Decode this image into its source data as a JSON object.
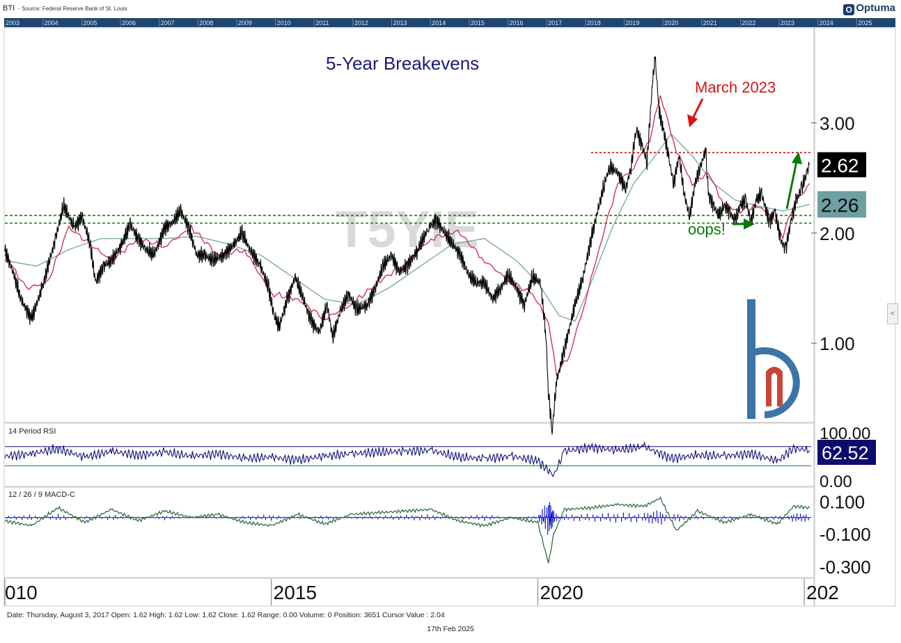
{
  "header": {
    "symbol": "BTI",
    "source": "- Source: Federal Reserve Bank of St. Louis",
    "logo_text": "Optuma",
    "logo_mark": "O"
  },
  "timeline_years": [
    "2003",
    "2004",
    "2005",
    "2006",
    "2007",
    "2008",
    "2009",
    "2010",
    "2011",
    "2012",
    "2013",
    "2014",
    "2015",
    "2016",
    "2017",
    "2018",
    "2019",
    "2020",
    "2021",
    "2022",
    "2023",
    "2024",
    "2025"
  ],
  "watermark": "T5YIE",
  "annotations": {
    "title": "5-Year Breakevens",
    "march": "March 2023",
    "oops": "oops!"
  },
  "status_bar": "Date: Thursday, August 3, 2017 Open: 1.62 High: 1.62 Low: 1.62 Close: 1.62 Range: 0.00 Volume: 0 Position: 3651 Cursor Value : 2.04",
  "footer_date": "17th Feb 2025",
  "scroll_glyph": "<",
  "colors": {
    "price": "#000000",
    "ma_fast": "#d2344e",
    "ma_slow": "#7ca8aa",
    "resistance": "#cc0000",
    "support": "#0a7a0a",
    "rsi": "#10107a",
    "macd_line": "#2f6f3f",
    "macd_hist": "#1010d0",
    "timeline_bg": "#1e4670",
    "last_price_bg": "#000000",
    "ma_label_bg": "#6e9fa2",
    "rsi_label_bg": "#0c0c6e"
  },
  "chart_data": [
    {
      "type": "line",
      "panel": "price",
      "title": "5-Year Breakevens",
      "ylim": [
        0.3,
        3.85
      ],
      "x_range": [
        2010.0,
        2025.13
      ],
      "y_ticks": [
        "3.00",
        "2.00",
        "1.00"
      ],
      "y_tick_values": [
        3.0,
        2.0,
        1.0
      ],
      "x_ticks": [
        "010",
        "2015",
        "2020",
        "202"
      ],
      "x_tick_values": [
        2010.0,
        2015.0,
        2020.0,
        2025.0
      ],
      "last_value_label": "2.62",
      "ma_value_label": "2.26",
      "support_levels": [
        2.16,
        2.09
      ],
      "resistance_level": 2.73,
      "series": [
        {
          "key": "price",
          "x": [
            2010.0,
            2010.15,
            2010.3,
            2010.5,
            2010.7,
            2010.95,
            2011.1,
            2011.3,
            2011.45,
            2011.6,
            2011.7,
            2011.85,
            2012.0,
            2012.2,
            2012.35,
            2012.5,
            2012.65,
            2012.8,
            2013.0,
            2013.15,
            2013.3,
            2013.45,
            2013.6,
            2013.75,
            2013.9,
            2014.1,
            2014.3,
            2014.45,
            2014.6,
            2014.8,
            2014.95,
            2015.05,
            2015.15,
            2015.3,
            2015.45,
            2015.6,
            2015.75,
            2015.9,
            2016.05,
            2016.15,
            2016.3,
            2016.45,
            2016.6,
            2016.8,
            2016.95,
            2017.1,
            2017.25,
            2017.4,
            2017.55,
            2017.75,
            2017.95,
            2018.1,
            2018.25,
            2018.4,
            2018.55,
            2018.7,
            2018.85,
            2019.0,
            2019.15,
            2019.3,
            2019.45,
            2019.6,
            2019.75,
            2019.9,
            2020.05,
            2020.15,
            2020.2,
            2020.27,
            2020.35,
            2020.5,
            2020.7,
            2020.85,
            2021.0,
            2021.15,
            2021.25,
            2021.35,
            2021.5,
            2021.65,
            2021.75,
            2021.85,
            2021.95,
            2022.05,
            2022.15,
            2022.2,
            2022.28,
            2022.35,
            2022.45,
            2022.55,
            2022.65,
            2022.75,
            2022.85,
            2022.95,
            2023.05,
            2023.15,
            2023.2,
            2023.3,
            2023.4,
            2023.5,
            2023.6,
            2023.7,
            2023.8,
            2023.9,
            2024.0,
            2024.1,
            2024.2,
            2024.35,
            2024.45,
            2024.55,
            2024.65,
            2024.75,
            2024.85,
            2024.95,
            2025.05,
            2025.1
          ],
          "values": [
            1.85,
            1.65,
            1.4,
            1.22,
            1.5,
            1.95,
            2.25,
            2.05,
            2.15,
            1.9,
            1.55,
            1.7,
            1.75,
            1.9,
            2.08,
            1.95,
            1.85,
            1.8,
            2.05,
            2.1,
            2.2,
            2.05,
            1.8,
            1.8,
            1.75,
            1.8,
            1.9,
            2.0,
            1.85,
            1.7,
            1.5,
            1.25,
            1.15,
            1.4,
            1.6,
            1.4,
            1.2,
            1.1,
            1.35,
            1.05,
            1.3,
            1.45,
            1.3,
            1.35,
            1.5,
            1.7,
            1.8,
            1.65,
            1.7,
            1.85,
            2.05,
            2.12,
            2.0,
            1.9,
            1.8,
            1.62,
            1.55,
            1.55,
            1.4,
            1.5,
            1.62,
            1.5,
            1.35,
            1.6,
            1.55,
            1.1,
            0.55,
            0.2,
            0.65,
            0.95,
            1.35,
            1.6,
            1.95,
            2.25,
            2.45,
            2.6,
            2.55,
            2.4,
            2.6,
            2.95,
            2.8,
            2.65,
            3.35,
            3.6,
            3.1,
            2.95,
            2.7,
            2.45,
            2.7,
            2.35,
            2.15,
            2.45,
            2.6,
            2.75,
            2.35,
            2.25,
            2.15,
            2.25,
            2.2,
            2.1,
            2.25,
            2.3,
            2.1,
            2.3,
            2.35,
            2.1,
            2.2,
            1.95,
            1.85,
            2.1,
            2.3,
            2.4,
            2.55,
            2.62
          ]
        },
        {
          "key": "ma_fast",
          "x": [
            2010.0,
            2010.4,
            2010.8,
            2011.2,
            2011.6,
            2012.0,
            2012.5,
            2013.0,
            2013.5,
            2014.0,
            2014.5,
            2015.0,
            2015.5,
            2016.0,
            2016.5,
            2017.0,
            2017.5,
            2018.0,
            2018.5,
            2019.0,
            2019.5,
            2019.9,
            2020.2,
            2020.35,
            2020.6,
            2020.9,
            2021.2,
            2021.5,
            2021.8,
            2022.1,
            2022.3,
            2022.6,
            2022.9,
            2023.2,
            2023.5,
            2023.8,
            2024.1,
            2024.4,
            2024.6,
            2024.8,
            2025.1
          ],
          "values": [
            1.8,
            1.5,
            1.55,
            2.05,
            1.9,
            1.75,
            1.95,
            1.88,
            2.05,
            1.8,
            1.85,
            1.45,
            1.4,
            1.22,
            1.35,
            1.55,
            1.72,
            1.95,
            2.02,
            1.75,
            1.55,
            1.45,
            1.2,
            0.72,
            0.9,
            1.4,
            1.95,
            2.45,
            2.6,
            2.85,
            3.25,
            2.75,
            2.45,
            2.55,
            2.25,
            2.2,
            2.25,
            2.15,
            1.98,
            2.25,
            2.45
          ]
        },
        {
          "key": "ma_slow",
          "x": [
            2010.0,
            2010.6,
            2011.2,
            2011.8,
            2012.4,
            2013.0,
            2013.6,
            2014.2,
            2014.8,
            2015.4,
            2016.0,
            2016.6,
            2017.2,
            2017.8,
            2018.4,
            2019.0,
            2019.6,
            2020.0,
            2020.4,
            2020.7,
            2021.0,
            2021.4,
            2021.8,
            2022.2,
            2022.5,
            2022.9,
            2023.3,
            2023.7,
            2024.1,
            2024.6,
            2025.1
          ],
          "values": [
            1.75,
            1.7,
            1.85,
            1.95,
            1.95,
            1.95,
            1.97,
            1.9,
            1.8,
            1.6,
            1.4,
            1.35,
            1.5,
            1.7,
            1.9,
            1.95,
            1.75,
            1.55,
            1.25,
            1.2,
            1.55,
            2.05,
            2.45,
            2.7,
            2.9,
            2.7,
            2.45,
            2.3,
            2.25,
            2.2,
            2.26
          ]
        }
      ]
    },
    {
      "type": "line",
      "panel": "rsi",
      "title": "14 Period RSI",
      "ylim": [
        0,
        100
      ],
      "y_ticks": [
        "100.00",
        "0.00"
      ],
      "y_tick_values": [
        100,
        0
      ],
      "reference_levels": [
        70,
        30
      ],
      "last_value_label": "62.52",
      "x": [
        2010.0,
        2010.5,
        2011.0,
        2011.5,
        2012.0,
        2012.5,
        2013.0,
        2013.5,
        2014.0,
        2014.5,
        2015.0,
        2015.5,
        2016.0,
        2016.5,
        2017.0,
        2017.5,
        2018.0,
        2018.5,
        2019.0,
        2019.5,
        2020.0,
        2020.3,
        2020.5,
        2021.0,
        2021.5,
        2022.0,
        2022.5,
        2023.0,
        2023.5,
        2024.0,
        2024.5,
        2024.8,
        2025.1
      ],
      "values": [
        50,
        55,
        65,
        48,
        60,
        52,
        58,
        50,
        55,
        45,
        48,
        42,
        50,
        55,
        58,
        60,
        62,
        48,
        45,
        50,
        40,
        10,
        60,
        68,
        62,
        70,
        45,
        52,
        50,
        55,
        40,
        66,
        62.52
      ]
    },
    {
      "type": "line",
      "panel": "macd",
      "title": "12 / 26 / 9 MACD-C",
      "ylim": [
        -0.36,
        0.17
      ],
      "y_ticks": [
        "0.100",
        "-0.100",
        "-0.300"
      ],
      "y_tick_values": [
        0.1,
        -0.1,
        -0.3
      ],
      "x": [
        2010.0,
        2010.5,
        2011.0,
        2011.5,
        2012.0,
        2012.5,
        2013.0,
        2013.5,
        2014.0,
        2014.5,
        2015.0,
        2015.5,
        2016.0,
        2016.5,
        2017.0,
        2017.5,
        2018.0,
        2018.5,
        2019.0,
        2019.5,
        2020.0,
        2020.2,
        2020.3,
        2020.5,
        2021.0,
        2021.5,
        2022.0,
        2022.3,
        2022.6,
        2023.0,
        2023.5,
        2024.0,
        2024.5,
        2024.8,
        2025.1
      ],
      "values": [
        -0.02,
        -0.05,
        0.06,
        -0.03,
        0.05,
        -0.02,
        0.04,
        0.0,
        0.02,
        -0.03,
        -0.05,
        0.02,
        -0.04,
        0.02,
        0.03,
        0.04,
        0.05,
        -0.02,
        -0.05,
        0.0,
        -0.03,
        -0.28,
        -0.1,
        0.05,
        0.06,
        0.08,
        0.07,
        0.12,
        -0.08,
        0.04,
        -0.03,
        0.02,
        -0.04,
        0.07,
        0.06
      ]
    }
  ]
}
